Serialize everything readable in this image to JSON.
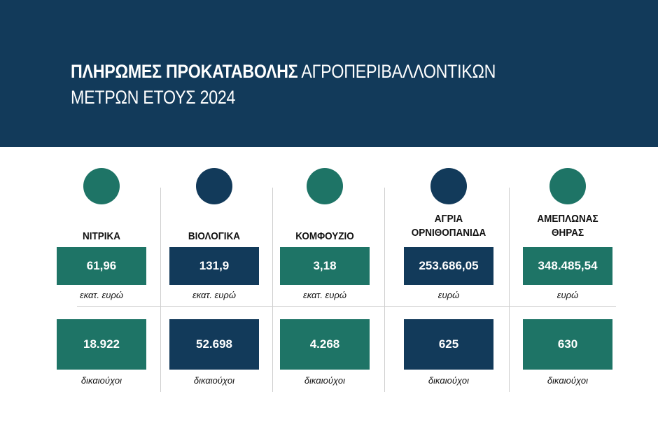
{
  "header": {
    "title_bold": "ΠΛΗΡΩΜΕΣ ΠΡΟΚΑΤΑΒΟΛΗΣ",
    "title_light_1": "ΑΓΡΟΠΕΡΙΒΑΛΛΟΝΤΙΚΩΝ",
    "title_light_2": "ΜΕΤΡΩΝ ΕΤΟΥΣ 2024"
  },
  "colors": {
    "green": "#1e7466",
    "navy": "#123a5a"
  },
  "columns": [
    {
      "label": "ΝΙΤΡΙΚΑ",
      "amount": "61,96",
      "amount_unit": "εκατ. ευρώ",
      "beneficiaries": "18.922",
      "beneficiaries_unit": "δικαιούχοι",
      "color": "green"
    },
    {
      "label": "ΒΙΟΛΟΓΙΚΑ",
      "amount": "131,9",
      "amount_unit": "εκατ. ευρώ",
      "beneficiaries": "52.698",
      "beneficiaries_unit": "δικαιούχοι",
      "color": "navy"
    },
    {
      "label": "ΚΟΜΦΟΥΖΙΟ",
      "amount": "3,18",
      "amount_unit": "εκατ. ευρώ",
      "beneficiaries": "4.268",
      "beneficiaries_unit": "δικαιούχοι",
      "color": "green"
    },
    {
      "label": "ΑΓΡΙΑ ΟΡΝΙΘΟΠΑΝΙΔΑ",
      "label_line1": "ΑΓΡΙΑ",
      "label_line2": "ΟΡΝΙΘΟΠΑΝΙΔΑ",
      "amount": "253.686,05",
      "amount_unit": "ευρώ",
      "beneficiaries": "625",
      "beneficiaries_unit": "δικαιούχοι",
      "color": "navy"
    },
    {
      "label": "ΑΜΕΠΛΩΝΑΣ ΘΗΡΑΣ",
      "label_line1": "ΑΜΕΠΛΩΝΑΣ",
      "label_line2": "ΘΗΡΑΣ",
      "amount": "348.485,54",
      "amount_unit": "ευρώ",
      "beneficiaries": "630",
      "beneficiaries_unit": "δικαιούχοι",
      "color": "green"
    }
  ]
}
